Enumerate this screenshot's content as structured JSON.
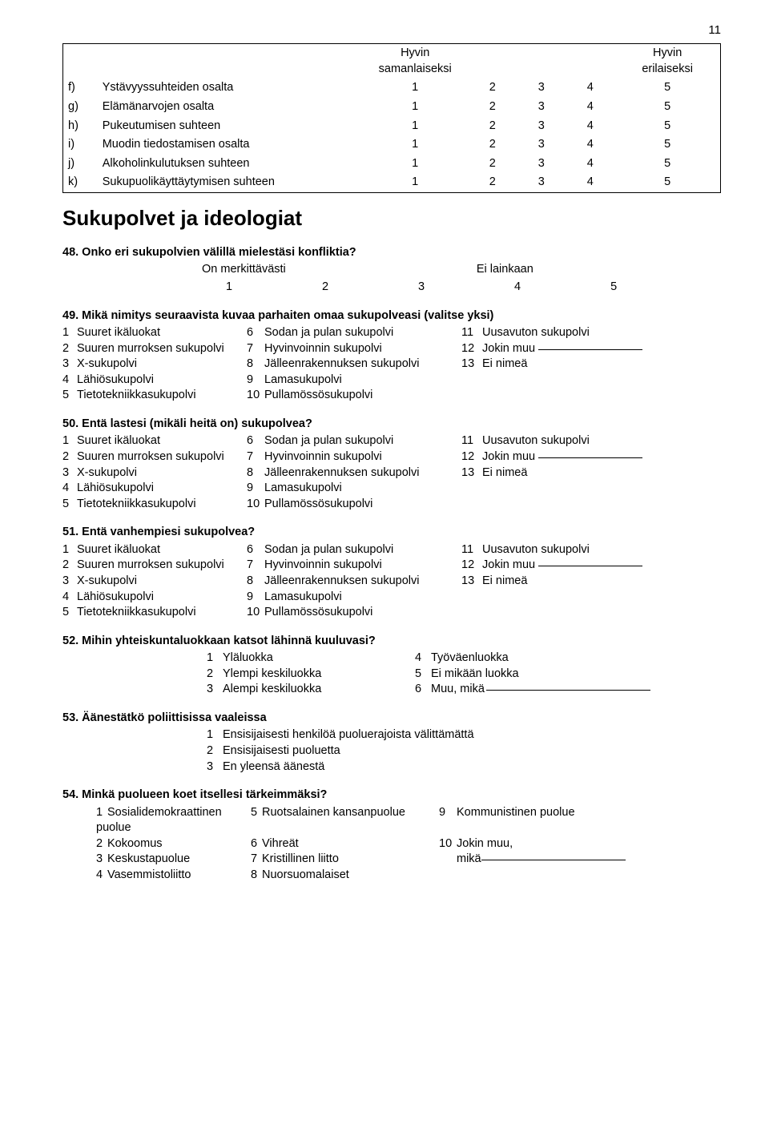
{
  "page_number": "11",
  "matrix": {
    "header_left": "Hyvin\nsamanlaiseksi",
    "header_right": "Hyvin\nerilaiseksi",
    "rows": [
      {
        "letter": "f)",
        "label": "Ystävyyssuhteiden osalta"
      },
      {
        "letter": "g)",
        "label": "Elämänarvojen osalta"
      },
      {
        "letter": "h)",
        "label": "Pukeutumisen suhteen"
      },
      {
        "letter": "i)",
        "label": "Muodin tiedostamisen osalta"
      },
      {
        "letter": "j)",
        "label": "Alkoholinkulutuksen suhteen"
      },
      {
        "letter": "k)",
        "label": "Sukupuolikäyttäytymisen suhteen"
      }
    ],
    "scale": [
      "1",
      "2",
      "3",
      "4",
      "5"
    ]
  },
  "section_title": "Sukupolvet ja ideologiat",
  "q48": {
    "title": "48. Onko eri sukupolvien välillä mielestäsi konfliktia?",
    "left": "On merkittävästi",
    "right": "Ei lainkaan",
    "nums": [
      "1",
      "2",
      "3",
      "4",
      "5"
    ]
  },
  "gen_opts": {
    "col1": [
      {
        "n": "1",
        "t": "Suuret ikäluokat"
      },
      {
        "n": "2",
        "t": "Suuren murroksen sukupolvi"
      },
      {
        "n": "3",
        "t": "X-sukupolvi"
      },
      {
        "n": "4",
        "t": "Lähiösukupolvi"
      },
      {
        "n": "5",
        "t": "Tietotekniikkasukupolvi"
      }
    ],
    "col2": [
      {
        "n": "6",
        "t": "Sodan ja pulan sukupolvi"
      },
      {
        "n": "7",
        "t": "Hyvinvoinnin sukupolvi"
      },
      {
        "n": "8",
        "t": "Jälleenrakennuksen sukupolvi"
      },
      {
        "n": "9",
        "t": "Lamasukupolvi"
      },
      {
        "n": "10",
        "t": "Pullamössösukupolvi"
      }
    ],
    "col3": [
      {
        "n": "11",
        "t": "Uusavuton sukupolvi"
      },
      {
        "n": "12",
        "t": "Jokin muu",
        "u": true
      },
      {
        "n": "13",
        "t": "Ei nimeä"
      }
    ]
  },
  "q49_title": "49. Mikä nimitys seuraavista kuvaa parhaiten omaa sukupolveasi (valitse yksi)",
  "q50_title": "50. Entä lastesi (mikäli heitä on) sukupolvea?",
  "q51_title": "51. Entä vanhempiesi sukupolvea?",
  "q52": {
    "title": "52. Mihin yhteiskuntaluokkaan katsot lähinnä kuuluvasi?",
    "left": [
      {
        "n": "1",
        "t": "Yläluokka"
      },
      {
        "n": "2",
        "t": "Ylempi keskiluokka"
      },
      {
        "n": "3",
        "t": "Alempi keskiluokka"
      }
    ],
    "right": [
      {
        "n": "4",
        "t": "Työväenluokka"
      },
      {
        "n": "5",
        "t": "Ei mikään luokka"
      },
      {
        "n": "6",
        "t": "Muu, mikä",
        "u": true
      }
    ]
  },
  "q53": {
    "title": "53. Äänestätkö poliittisissa vaaleissa",
    "opts": [
      {
        "n": "1",
        "t": "Ensisijaisesti henkilöä puoluerajoista välittämättä"
      },
      {
        "n": "2",
        "t": "Ensisijaisesti puoluetta"
      },
      {
        "n": "3",
        "t": "En yleensä äänestä"
      }
    ]
  },
  "q54": {
    "title": "54. Minkä puolueen koet  itsellesi tärkeimmäksi?",
    "col1": [
      {
        "n": "1",
        "t": "Sosialidemokraattinen puolue"
      },
      {
        "n": "2",
        "t": "Kokoomus"
      },
      {
        "n": "3",
        "t": "Keskustapuolue"
      },
      {
        "n": "4",
        "t": "Vasemmistoliitto"
      }
    ],
    "col2": [
      {
        "n": "5",
        "t": "Ruotsalainen kansanpuolue"
      },
      {
        "n": "6",
        "t": "Vihreät"
      },
      {
        "n": "7",
        "t": "Kristillinen liitto"
      },
      {
        "n": "8",
        "t": "Nuorsuomalaiset"
      }
    ],
    "col3": [
      {
        "n": "9",
        "t": "Kommunistinen puolue"
      },
      {
        "n": "10",
        "t": "Jokin muu,"
      },
      {
        "n": "",
        "t": "mikä",
        "u": true
      },
      {
        "n": "",
        "t": ""
      }
    ]
  }
}
